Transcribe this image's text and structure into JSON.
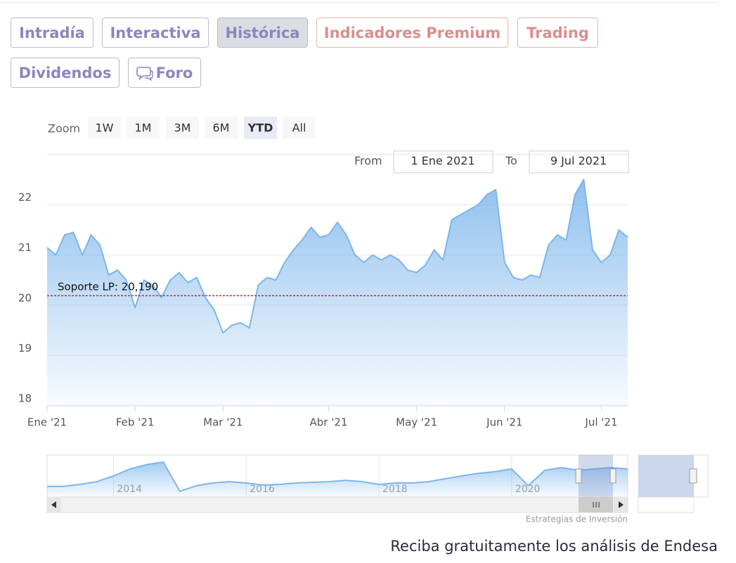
{
  "tabs": [
    "Intradía",
    "Interactiva",
    "Histórica",
    "Indicadores Premium",
    "Trading",
    "Dividendos",
    "Foro"
  ],
  "zoom": {
    "label": "Zoom",
    "buttons": [
      "1W",
      "1M",
      "3M",
      "6M",
      "YTD",
      "All"
    ]
  },
  "range": {
    "from_label": "From",
    "from": "1 Ene 2021",
    "to_label": "To",
    "to": "9 Jul 2021"
  },
  "chart_data": {
    "type": "area",
    "categories": [
      "Ene '21",
      null,
      null,
      null,
      null,
      null,
      null,
      null,
      null,
      null,
      "Feb '21",
      null,
      null,
      null,
      null,
      null,
      null,
      null,
      null,
      null,
      "Mar '21",
      null,
      null,
      null,
      null,
      null,
      null,
      null,
      null,
      null,
      null,
      null,
      "Abr '21",
      null,
      null,
      null,
      null,
      null,
      null,
      null,
      null,
      null,
      "May '21",
      null,
      null,
      null,
      null,
      null,
      null,
      null,
      null,
      null,
      "Jun '21",
      null,
      null,
      null,
      null,
      null,
      null,
      null,
      null,
      null,
      null,
      "Jul '21",
      null,
      null,
      null
    ],
    "values": [
      21.15,
      21.0,
      21.4,
      21.45,
      21.0,
      21.4,
      21.2,
      20.6,
      20.7,
      20.5,
      19.95,
      20.5,
      20.4,
      20.15,
      20.5,
      20.65,
      20.45,
      20.55,
      20.15,
      19.9,
      19.45,
      19.6,
      19.65,
      19.55,
      20.4,
      20.55,
      20.5,
      20.85,
      21.1,
      21.3,
      21.55,
      21.35,
      21.4,
      21.65,
      21.4,
      21.0,
      20.85,
      21.0,
      20.9,
      21.0,
      20.9,
      20.7,
      20.65,
      20.8,
      21.1,
      20.9,
      21.7,
      21.8,
      21.9,
      22.0,
      22.2,
      22.3,
      20.85,
      20.55,
      20.5,
      20.6,
      20.55,
      21.2,
      21.4,
      21.3,
      22.2,
      22.5,
      21.1,
      20.85,
      21.0,
      21.5,
      21.35
    ],
    "color": "#7cb5ec",
    "ylim": [
      18,
      23
    ],
    "yticks": [
      18,
      19,
      20,
      21,
      22
    ],
    "grid": true,
    "support_line": {
      "value": 20.19,
      "label": "Soporte LP: 20,190",
      "color": "#b22222"
    }
  },
  "navigator": {
    "type": "area",
    "categories": [
      null,
      null,
      null,
      null,
      "2014",
      null,
      null,
      null,
      null,
      null,
      null,
      null,
      "2016",
      null,
      null,
      null,
      null,
      null,
      null,
      null,
      "2018",
      null,
      null,
      null,
      null,
      null,
      null,
      null,
      "2020",
      null,
      null,
      null,
      null,
      null,
      null,
      null
    ],
    "values": [
      12.7,
      12.7,
      13.6,
      14.8,
      17.3,
      20.4,
      22.3,
      23.5,
      10.5,
      13.0,
      14.2,
      14.8,
      14.2,
      13.3,
      13.6,
      14.2,
      14.5,
      14.8,
      15.4,
      14.8,
      13.6,
      14.2,
      14.2,
      14.8,
      16.1,
      17.3,
      18.5,
      19.2,
      20.4,
      13.0,
      19.8,
      21.0,
      19.8,
      20.4,
      21.0,
      20.4
    ],
    "ylim": [
      8,
      26
    ]
  },
  "credit": "Estrategias de Inversión",
  "footer": "Reciba gratuitamente los análisis de Endesa"
}
